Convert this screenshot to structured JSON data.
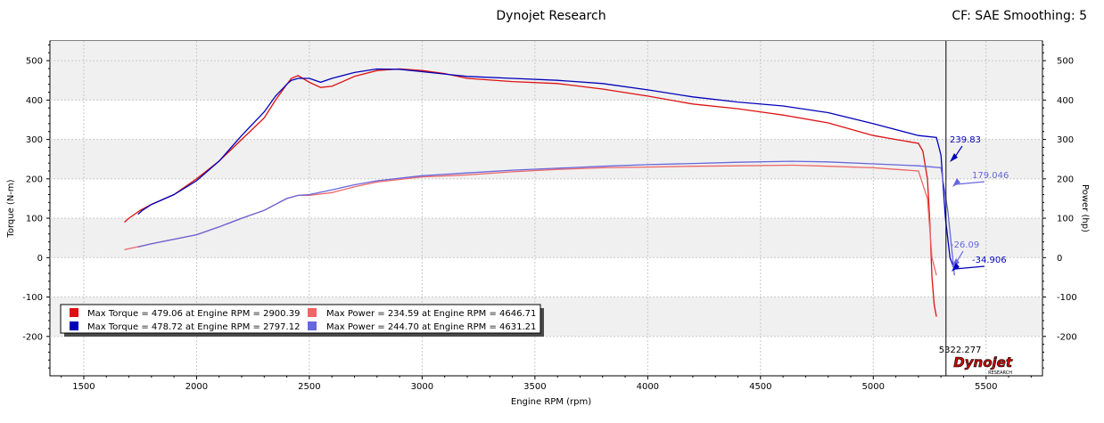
{
  "header": {
    "title": "Dynojet Research",
    "settings": "CF: SAE Smoothing: 5"
  },
  "chart_data": {
    "type": "line",
    "xlabel": "Engine RPM (rpm)",
    "ylabel_left": "Torque (N-m)",
    "ylabel_right": "Power (hp)",
    "xlim": [
      1350,
      5750
    ],
    "ylim": [
      -300,
      550
    ],
    "xticks": [
      1500,
      2000,
      2500,
      3000,
      3500,
      4000,
      4500,
      5000,
      5500
    ],
    "yticks": [
      -200,
      -100,
      0,
      100,
      200,
      300,
      400,
      500
    ],
    "grid": true,
    "legend_position": "bottom-left",
    "cursor": {
      "x": 5322.277,
      "label": "5322.277"
    },
    "series": [
      {
        "name": "Max Torque = 479.06 at Engine RPM = 2900.39",
        "kind": "torque",
        "color": "#dd1111",
        "x": [
          1680,
          1700,
          1750,
          1800,
          1900,
          2000,
          2100,
          2200,
          2300,
          2350,
          2400,
          2420,
          2450,
          2500,
          2550,
          2600,
          2700,
          2800,
          2900,
          3000,
          3100,
          3200,
          3400,
          3600,
          3800,
          4000,
          4200,
          4400,
          4600,
          4800,
          5000,
          5100,
          5200,
          5220,
          5240,
          5250,
          5260,
          5270,
          5280
        ],
        "y": [
          90,
          100,
          120,
          135,
          160,
          200,
          245,
          300,
          355,
          400,
          440,
          455,
          462,
          445,
          432,
          435,
          460,
          475,
          479,
          475,
          467,
          455,
          447,
          442,
          428,
          410,
          390,
          378,
          362,
          342,
          310,
          300,
          290,
          270,
          200,
          100,
          -50,
          -120,
          -150
        ]
      },
      {
        "name": "Max Torque = 478.72 at Engine RPM = 2797.12",
        "kind": "torque",
        "color": "#0000bb",
        "x": [
          1740,
          1760,
          1800,
          1900,
          2000,
          2100,
          2200,
          2300,
          2350,
          2400,
          2420,
          2450,
          2500,
          2550,
          2600,
          2700,
          2797,
          2900,
          3000,
          3200,
          3400,
          3600,
          3800,
          4000,
          4200,
          4400,
          4600,
          4800,
          5000,
          5200,
          5280,
          5300,
          5320,
          5340,
          5360
        ],
        "y": [
          110,
          120,
          135,
          160,
          195,
          245,
          310,
          370,
          410,
          440,
          450,
          455,
          455,
          445,
          455,
          470,
          478.72,
          478,
          472,
          460,
          455,
          450,
          442,
          426,
          408,
          395,
          385,
          368,
          340,
          310,
          305,
          260,
          100,
          0,
          -30
        ]
      },
      {
        "name": "Max Power = 234.59 at Engine RPM = 4646.71",
        "kind": "power",
        "color": "#ee6666",
        "x": [
          1680,
          1800,
          2000,
          2100,
          2200,
          2300,
          2400,
          2450,
          2500,
          2600,
          2700,
          2800,
          3000,
          3200,
          3400,
          3600,
          3800,
          4000,
          4200,
          4400,
          4646.71,
          4800,
          5000,
          5100,
          5200,
          5240,
          5260,
          5280
        ],
        "y": [
          20,
          35,
          58,
          78,
          100,
          120,
          150,
          158,
          158,
          165,
          180,
          192,
          205,
          210,
          218,
          224,
          228,
          230,
          232,
          233,
          234.59,
          232,
          228,
          224,
          220,
          150,
          0,
          -45
        ]
      },
      {
        "name": "Max Power = 244.70 at Engine RPM = 4631.21",
        "kind": "power",
        "color": "#6666dd",
        "x": [
          1740,
          1800,
          2000,
          2100,
          2200,
          2300,
          2400,
          2450,
          2500,
          2600,
          2700,
          2800,
          3000,
          3200,
          3400,
          3600,
          3800,
          4000,
          4200,
          4400,
          4631.21,
          4800,
          5000,
          5200,
          5300,
          5330,
          5360
        ],
        "y": [
          27,
          35,
          58,
          78,
          100,
          120,
          150,
          158,
          160,
          172,
          185,
          195,
          208,
          215,
          222,
          227,
          232,
          236,
          239,
          242,
          244.7,
          243,
          238,
          233,
          228,
          120,
          -45
        ]
      }
    ],
    "annotations": [
      {
        "text": "239.83",
        "x": 5322,
        "y": 300,
        "color": "#0000bb"
      },
      {
        "text": "179.046",
        "x": 5322,
        "y": 220,
        "color": "#6666dd"
      },
      {
        "text": "-26.09",
        "x": 5322,
        "y": 30,
        "color": "#6666dd"
      },
      {
        "text": "-34.906",
        "x": 5322,
        "y": 0,
        "color": "#0000bb"
      }
    ]
  }
}
